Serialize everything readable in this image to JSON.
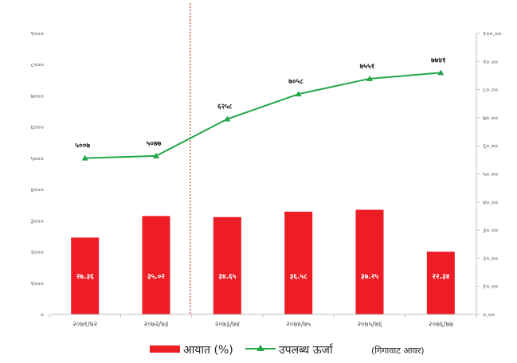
{
  "chart_data": {
    "type": "bar+line",
    "categories": [
      "२०७१/७२",
      "२०७२/७३",
      "२०७३/७४",
      "२०७४/७५",
      "२०७५/७६",
      "२०७६/७७"
    ],
    "series": [
      {
        "name": "आयात (%)",
        "type": "bar",
        "axis": "right",
        "values": [
          27.36,
          35.02,
          34.65,
          36.58,
          37.25,
          22.34
        ],
        "value_labels": [
          "२७.३६",
          "३५.०२",
          "३४.६५",
          "३६.५८",
          "३७.२५",
          "२२.३४"
        ],
        "color": "#ee1c25"
      },
      {
        "name": "उपलब्ध ऊर्जा",
        "name_suffix": "(गिगावाट आवर)",
        "type": "line",
        "axis": "left",
        "values": [
          5007,
          5077,
          6258,
          7058,
          7551,
          7741
        ],
        "value_labels": [
          "५००७",
          "५०७७",
          "६२५८",
          "७०५८",
          "७५५१",
          "७७४१"
        ],
        "color": "#22a64a"
      }
    ],
    "left_axis": {
      "range": [
        0,
        9000
      ],
      "ticks": [
        0,
        1000,
        2000,
        3000,
        4000,
        5000,
        6000,
        7000,
        8000,
        9000
      ],
      "tick_labels": [
        "०",
        "१०००",
        "२०००",
        "३०००",
        "४०००",
        "५०००",
        "६०००",
        "७०००",
        "८०००",
        "९०००"
      ]
    },
    "right_axis": {
      "range": [
        0,
        100
      ],
      "ticks": [
        0,
        10,
        20,
        30,
        40,
        50,
        60,
        70,
        80,
        90,
        100
      ],
      "tick_labels": [
        "०.००",
        "१०.००",
        "२०.००",
        "३०.००",
        "४०.००",
        "५०.००",
        "६०.००",
        "७०.००",
        "८०.००",
        "९०.००",
        "१००.००"
      ]
    },
    "divider_after_category": 1,
    "grid": false,
    "legend": "bottom"
  }
}
